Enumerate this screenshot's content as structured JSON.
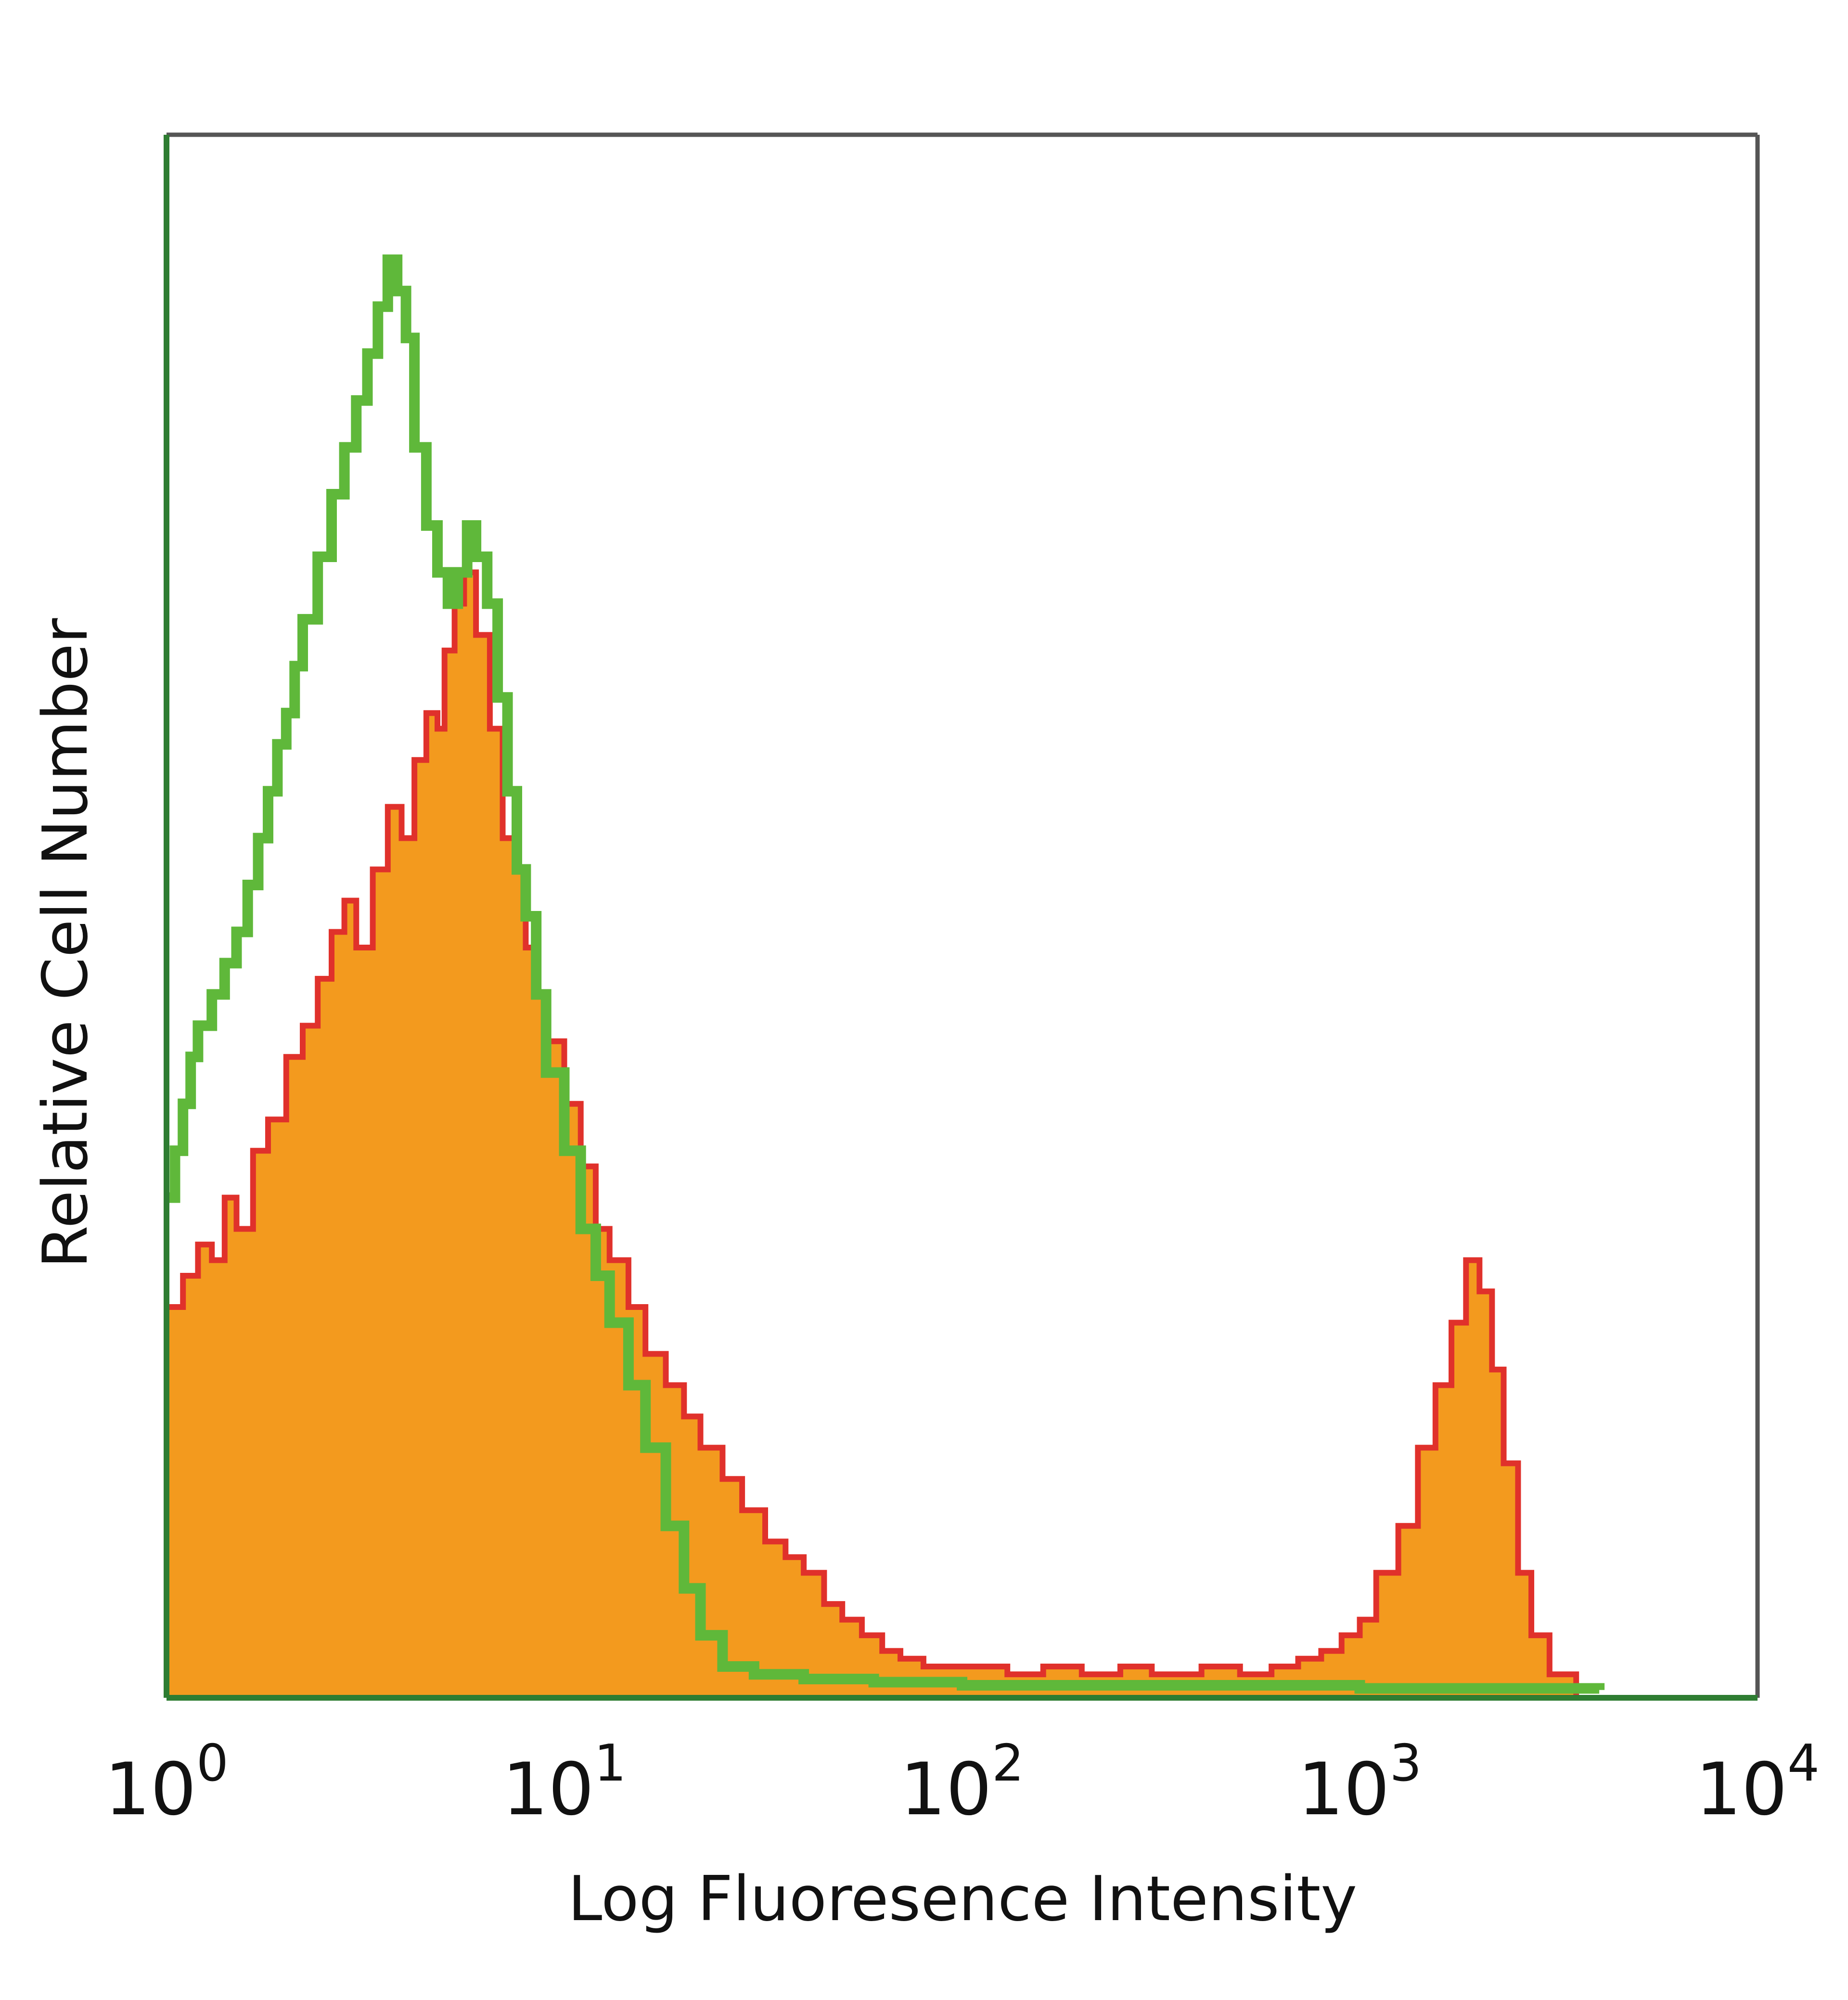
{
  "chart_data": {
    "type": "area",
    "title": "",
    "xlabel": "Log Fluoresence Intensity",
    "ylabel": "Relative Cell Number",
    "x_scale": "log",
    "xlim": [
      1,
      10000
    ],
    "ylim": [
      0,
      1
    ],
    "y_unit": "relative (fraction of plot height)",
    "grid": false,
    "legend": "none",
    "x_ticks": [
      {
        "base": "10",
        "exp": "0"
      },
      {
        "base": "10",
        "exp": "1"
      },
      {
        "base": "10",
        "exp": "2"
      },
      {
        "base": "10",
        "exp": "3"
      },
      {
        "base": "10",
        "exp": "4"
      }
    ],
    "colors": {
      "axes": "#2e7d32",
      "frame": "#555555",
      "red_line": "#e0312b",
      "orange_fill": "#f39a1e",
      "green_line": "#5fb83a"
    },
    "series": [
      {
        "style": "filled",
        "color": "#f39a1e",
        "edge_color": "#e0312b",
        "points": [
          [
            1.0,
            0.25
          ],
          [
            1.1,
            0.27
          ],
          [
            1.2,
            0.29
          ],
          [
            1.3,
            0.28
          ],
          [
            1.4,
            0.32
          ],
          [
            1.5,
            0.3
          ],
          [
            1.65,
            0.35
          ],
          [
            1.8,
            0.37
          ],
          [
            2.0,
            0.41
          ],
          [
            2.2,
            0.43
          ],
          [
            2.4,
            0.46
          ],
          [
            2.6,
            0.49
          ],
          [
            2.8,
            0.51
          ],
          [
            3.0,
            0.48
          ],
          [
            3.3,
            0.53
          ],
          [
            3.6,
            0.57
          ],
          [
            3.9,
            0.55
          ],
          [
            4.2,
            0.6
          ],
          [
            4.5,
            0.63
          ],
          [
            4.8,
            0.62
          ],
          [
            5.0,
            0.67
          ],
          [
            5.3,
            0.7
          ],
          [
            5.6,
            0.72
          ],
          [
            6.0,
            0.68
          ],
          [
            6.5,
            0.62
          ],
          [
            7.0,
            0.55
          ],
          [
            7.5,
            0.53
          ],
          [
            8.0,
            0.48
          ],
          [
            8.5,
            0.45
          ],
          [
            9.0,
            0.42
          ],
          [
            10.0,
            0.38
          ],
          [
            11.0,
            0.34
          ],
          [
            12.0,
            0.3
          ],
          [
            13.0,
            0.28
          ],
          [
            14.5,
            0.25
          ],
          [
            16.0,
            0.22
          ],
          [
            18.0,
            0.2
          ],
          [
            20.0,
            0.18
          ],
          [
            22.0,
            0.16
          ],
          [
            25.0,
            0.14
          ],
          [
            28.0,
            0.12
          ],
          [
            32.0,
            0.1
          ],
          [
            36.0,
            0.09
          ],
          [
            40.0,
            0.08
          ],
          [
            45.0,
            0.06
          ],
          [
            50.0,
            0.05
          ],
          [
            56.0,
            0.04
          ],
          [
            63.0,
            0.03
          ],
          [
            70.0,
            0.025
          ],
          [
            80.0,
            0.02
          ],
          [
            100.0,
            0.02
          ],
          [
            130.0,
            0.015
          ],
          [
            160.0,
            0.02
          ],
          [
            200.0,
            0.015
          ],
          [
            250.0,
            0.02
          ],
          [
            300.0,
            0.015
          ],
          [
            400.0,
            0.02
          ],
          [
            500.0,
            0.015
          ],
          [
            600.0,
            0.02
          ],
          [
            700.0,
            0.025
          ],
          [
            800.0,
            0.03
          ],
          [
            900.0,
            0.04
          ],
          [
            1000.0,
            0.05
          ],
          [
            1100.0,
            0.08
          ],
          [
            1250.0,
            0.11
          ],
          [
            1400.0,
            0.16
          ],
          [
            1550.0,
            0.2
          ],
          [
            1700.0,
            0.24
          ],
          [
            1850.0,
            0.28
          ],
          [
            2000.0,
            0.26
          ],
          [
            2150.0,
            0.21
          ],
          [
            2300.0,
            0.15
          ],
          [
            2500.0,
            0.08
          ],
          [
            2700.0,
            0.04
          ],
          [
            3000.0,
            0.015
          ],
          [
            3500.0,
            0.0
          ]
        ]
      },
      {
        "style": "line",
        "color": "#5fb83a",
        "points": [
          [
            1.0,
            0.32
          ],
          [
            1.05,
            0.35
          ],
          [
            1.1,
            0.38
          ],
          [
            1.15,
            0.41
          ],
          [
            1.2,
            0.43
          ],
          [
            1.3,
            0.45
          ],
          [
            1.4,
            0.47
          ],
          [
            1.5,
            0.49
          ],
          [
            1.6,
            0.52
          ],
          [
            1.7,
            0.55
          ],
          [
            1.8,
            0.58
          ],
          [
            1.9,
            0.61
          ],
          [
            2.0,
            0.63
          ],
          [
            2.1,
            0.66
          ],
          [
            2.2,
            0.69
          ],
          [
            2.4,
            0.73
          ],
          [
            2.6,
            0.77
          ],
          [
            2.8,
            0.8
          ],
          [
            3.0,
            0.83
          ],
          [
            3.2,
            0.86
          ],
          [
            3.4,
            0.89
          ],
          [
            3.6,
            0.92
          ],
          [
            3.8,
            0.9
          ],
          [
            4.0,
            0.87
          ],
          [
            4.2,
            0.8
          ],
          [
            4.5,
            0.75
          ],
          [
            4.8,
            0.72
          ],
          [
            5.1,
            0.7
          ],
          [
            5.4,
            0.72
          ],
          [
            5.7,
            0.75
          ],
          [
            6.0,
            0.73
          ],
          [
            6.4,
            0.7
          ],
          [
            6.8,
            0.64
          ],
          [
            7.2,
            0.58
          ],
          [
            7.6,
            0.53
          ],
          [
            8.0,
            0.5
          ],
          [
            8.5,
            0.45
          ],
          [
            9.0,
            0.4
          ],
          [
            10.0,
            0.35
          ],
          [
            11.0,
            0.3
          ],
          [
            12.0,
            0.27
          ],
          [
            13.0,
            0.24
          ],
          [
            14.5,
            0.2
          ],
          [
            16.0,
            0.16
          ],
          [
            18.0,
            0.11
          ],
          [
            20.0,
            0.07
          ],
          [
            22.0,
            0.04
          ],
          [
            25.0,
            0.02
          ],
          [
            30.0,
            0.015
          ],
          [
            40.0,
            0.012
          ],
          [
            60.0,
            0.01
          ],
          [
            100.0,
            0.008
          ],
          [
            1000.0,
            0.006
          ],
          [
            4000.0,
            0.005
          ]
        ]
      }
    ]
  }
}
